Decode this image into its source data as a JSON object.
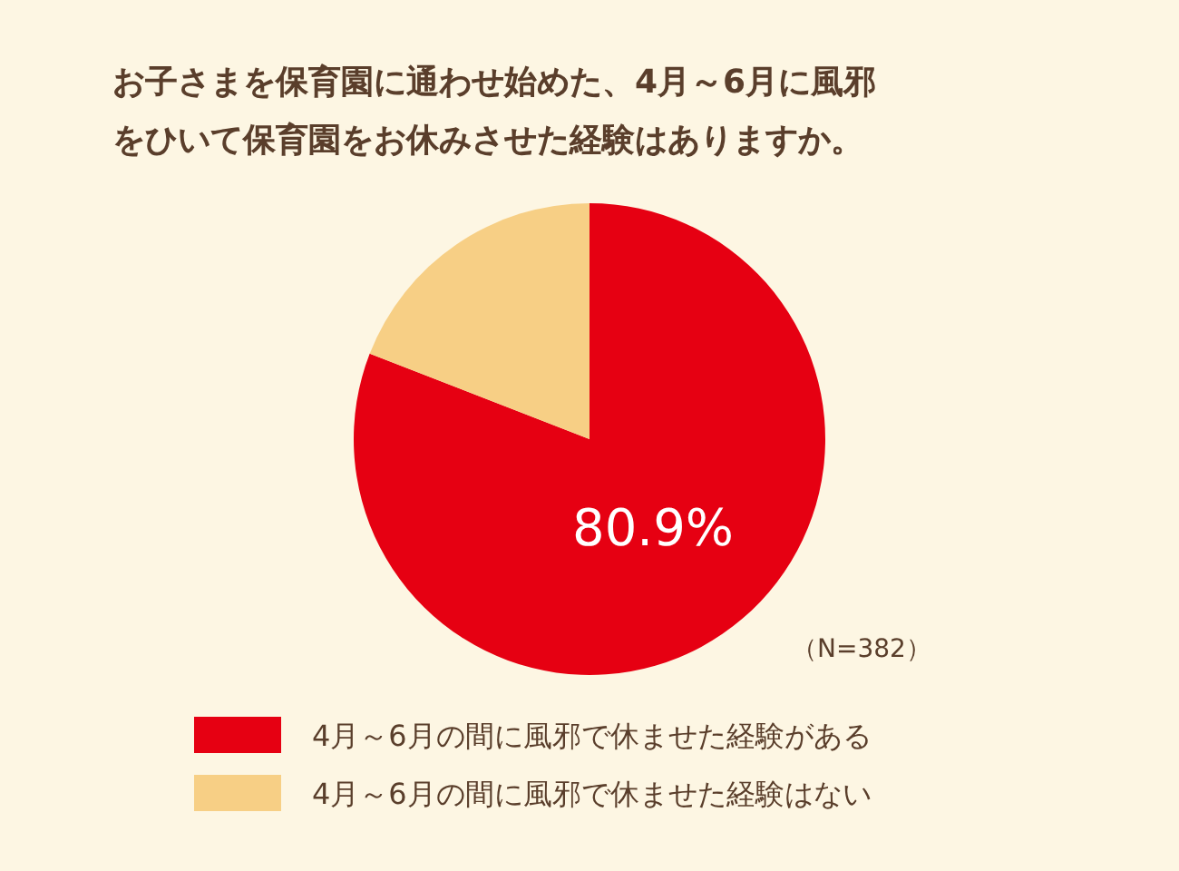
{
  "chart_data": {
    "type": "pie",
    "title": "お子さまを保育園に通わせ始めた、4月～6月に風邪をひいて保育園をお休みさせた経験はありますか。",
    "categories": [
      "4月～6月の間に風邪で休ませた経験がある",
      "4月～6月の間に風邪で休ませた経験はない"
    ],
    "values": [
      80.9,
      19.1
    ],
    "colors": [
      "#e60012",
      "#f7cf85"
    ],
    "value_labels": [
      "80.9%",
      null
    ],
    "annotations": [
      "（N=382）"
    ],
    "legend": "bottom"
  }
}
